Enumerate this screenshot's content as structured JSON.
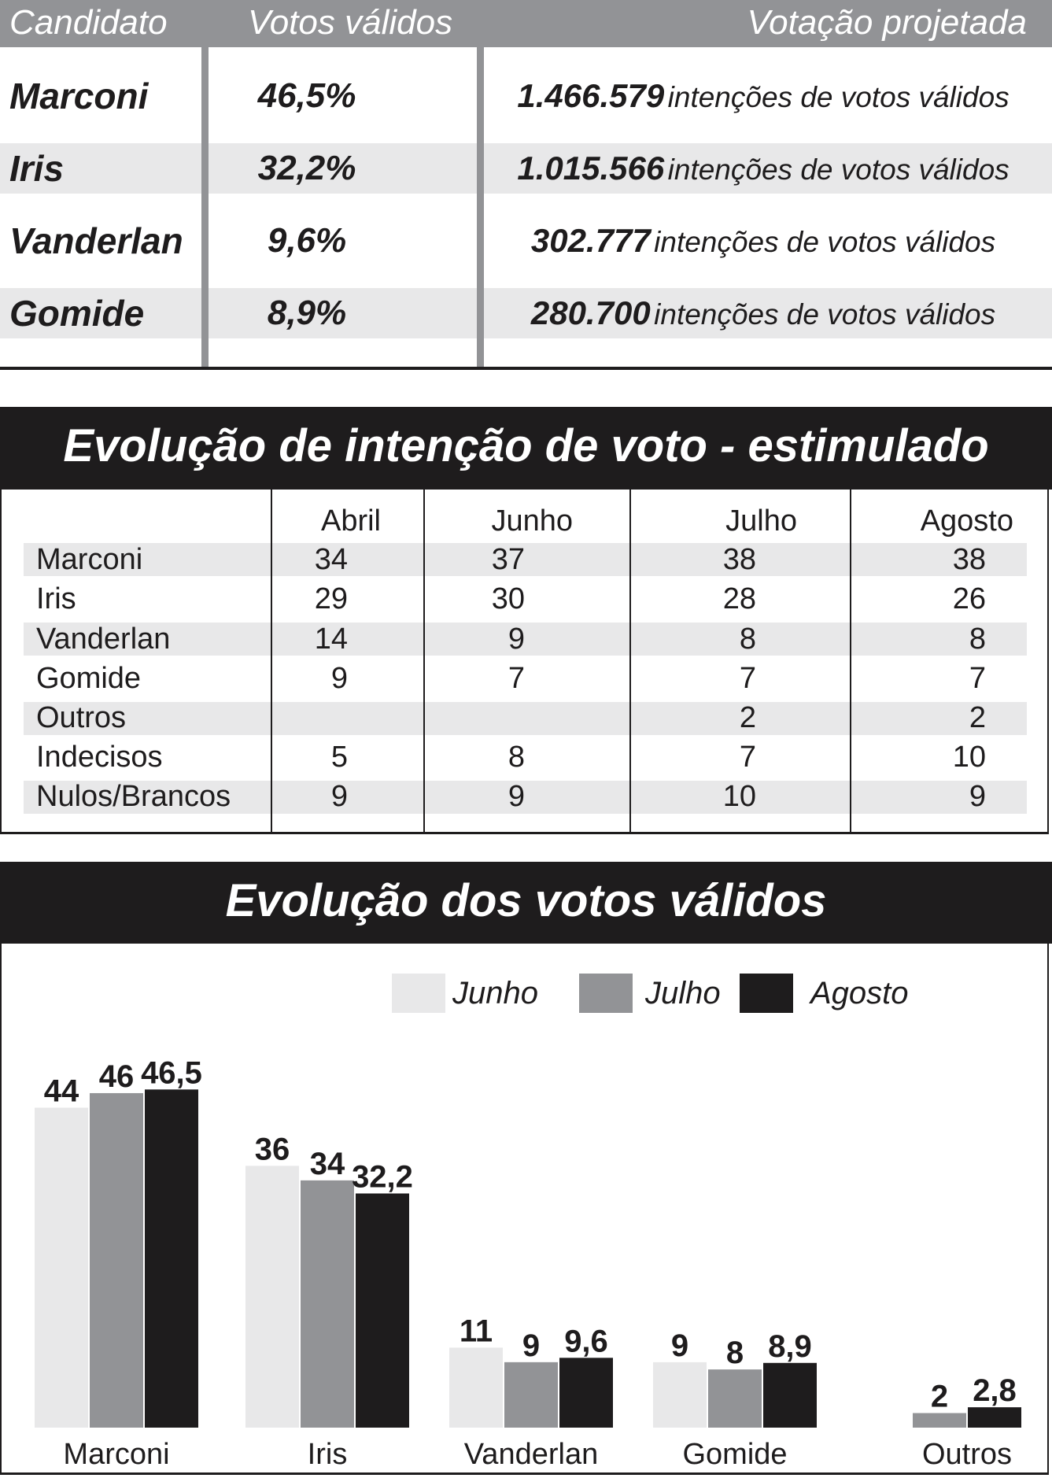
{
  "valid_votes_table": {
    "headers": {
      "candidate": "Candidato",
      "valid_votes": "Votos válidos",
      "projected": "Votação projetada"
    },
    "rows": [
      {
        "name": "Marconi",
        "pct": "46,5%",
        "votes": "1.466.579",
        "suffix": "intenções de votos válidos"
      },
      {
        "name": "Iris",
        "pct": "32,2%",
        "votes": "1.015.566",
        "suffix": "intenções de votos válidos"
      },
      {
        "name": "Vanderlan",
        "pct": "9,6%",
        "votes": "302.777",
        "suffix": "intenções de votos válidos"
      },
      {
        "name": "Gomide",
        "pct": "8,9%",
        "votes": "280.700",
        "suffix": "intenções de votos válidos"
      }
    ]
  },
  "stimulated": {
    "title": "Evolução de intenção de voto - estimulado",
    "months": [
      "Abril",
      "Junho",
      "Julho",
      "Agosto"
    ],
    "rows": [
      {
        "label": "Marconi",
        "values": [
          "34",
          "37",
          "38",
          "38"
        ]
      },
      {
        "label": "Iris",
        "values": [
          "29",
          "30",
          "28",
          "26"
        ]
      },
      {
        "label": "Vanderlan",
        "values": [
          "14",
          "9",
          "8",
          "8"
        ]
      },
      {
        "label": "Gomide",
        "values": [
          "9",
          "7",
          "7",
          "7"
        ]
      },
      {
        "label": "Outros",
        "values": [
          "",
          "",
          "2",
          "2"
        ]
      },
      {
        "label": "Indecisos",
        "values": [
          "5",
          "8",
          "7",
          "10"
        ]
      },
      {
        "label": "Nulos/Brancos",
        "values": [
          "9",
          "9",
          "10",
          "9"
        ]
      }
    ]
  },
  "chart_data": {
    "type": "bar",
    "title": "Evolução dos votos válidos",
    "categories": [
      "Marconi",
      "Iris",
      "Vanderlan",
      "Gomide",
      "Outros"
    ],
    "series": [
      {
        "name": "Junho",
        "color": "#e8e8e9",
        "values": [
          44,
          36,
          11,
          9,
          null
        ],
        "labels": [
          "44",
          "36",
          "11",
          "9",
          ""
        ]
      },
      {
        "name": "Julho",
        "color": "#929396",
        "values": [
          46,
          34,
          9,
          8,
          2
        ],
        "labels": [
          "46",
          "34",
          "9",
          "8",
          "2"
        ]
      },
      {
        "name": "Agosto",
        "color": "#1e1c1d",
        "values": [
          46.5,
          32.2,
          9.6,
          8.9,
          2.8
        ],
        "labels": [
          "46,5",
          "32,2",
          "9,6",
          "8,9",
          "2,8"
        ]
      }
    ],
    "xlabel": "",
    "ylabel": "",
    "ylim": [
      0,
      50
    ],
    "grid": false,
    "legend": "top-center"
  }
}
